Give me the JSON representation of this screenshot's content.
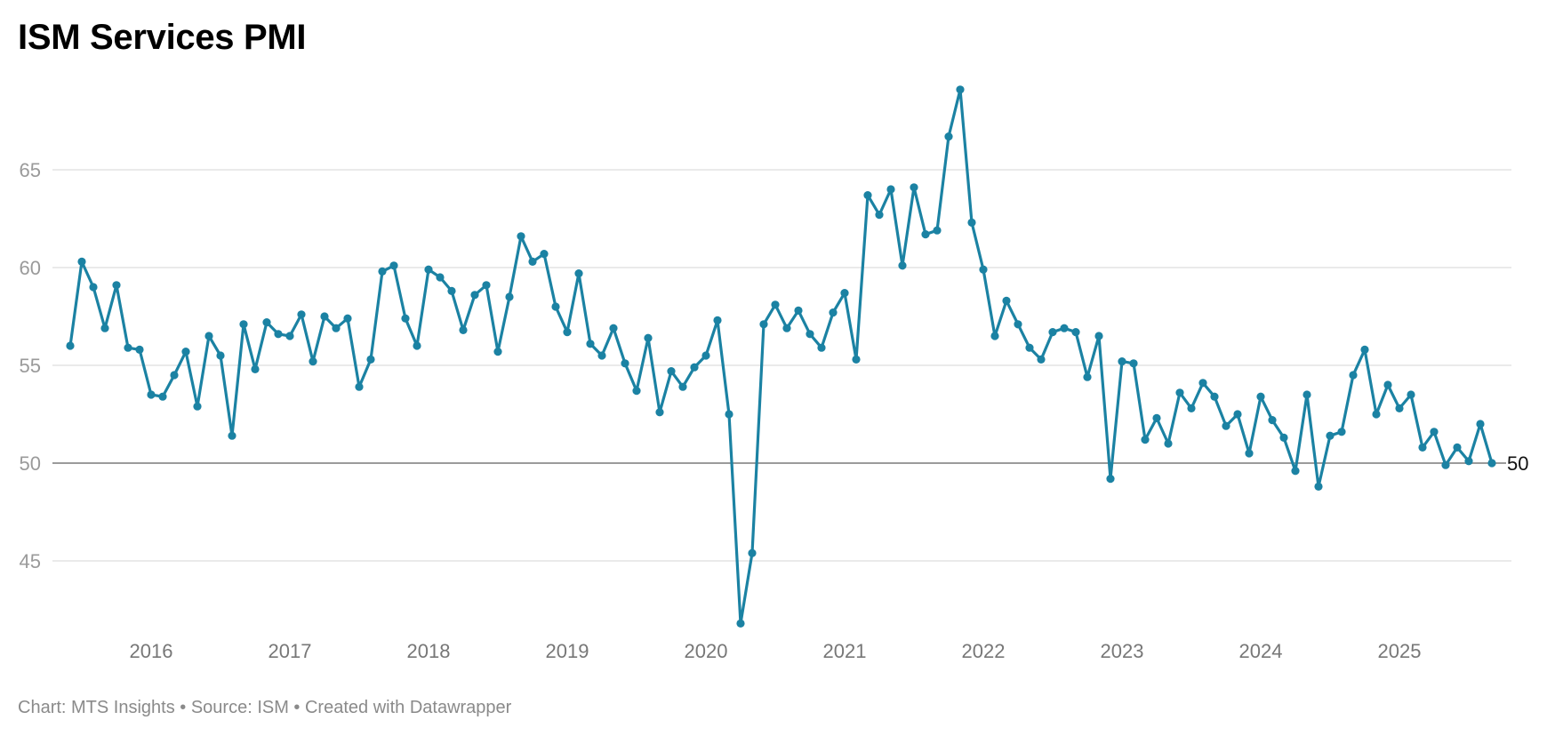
{
  "chart_data": {
    "type": "line",
    "title": "ISM Services PMI",
    "xlabel": "",
    "ylabel": "",
    "footer": "Chart: MTS Insights • Source: ISM • Created with Datawrapper",
    "start_month": "2015-06",
    "end_month": "2025-09",
    "x_tick_labels": [
      "2016",
      "2017",
      "2018",
      "2019",
      "2020",
      "2021",
      "2022",
      "2023",
      "2024",
      "2025"
    ],
    "y_ticks": [
      45,
      50,
      55,
      60,
      65
    ],
    "ylim": [
      41,
      70
    ],
    "reference_line": {
      "value": 50,
      "label": "50"
    },
    "grid": true,
    "legend": "none",
    "line_color": "#1b82a3",
    "series": [
      {
        "name": "ISM Services PMI",
        "values": [
          56.0,
          60.3,
          59.0,
          56.9,
          59.1,
          55.9,
          55.8,
          53.5,
          53.4,
          54.5,
          55.7,
          52.9,
          56.5,
          55.5,
          51.4,
          57.1,
          54.8,
          57.2,
          56.6,
          56.5,
          57.6,
          55.2,
          57.5,
          56.9,
          57.4,
          53.9,
          55.3,
          59.8,
          60.1,
          57.4,
          56.0,
          59.9,
          59.5,
          58.8,
          56.8,
          58.6,
          59.1,
          55.7,
          58.5,
          61.6,
          60.3,
          60.7,
          58.0,
          56.7,
          59.7,
          56.1,
          55.5,
          56.9,
          55.1,
          53.7,
          56.4,
          52.6,
          54.7,
          53.9,
          54.9,
          55.5,
          57.3,
          52.5,
          41.8,
          45.4,
          57.1,
          58.1,
          56.9,
          57.8,
          56.6,
          55.9,
          57.7,
          58.7,
          55.3,
          63.7,
          62.7,
          64.0,
          60.1,
          64.1,
          61.7,
          61.9,
          66.7,
          69.1,
          62.3,
          59.9,
          56.5,
          58.3,
          57.1,
          55.9,
          55.3,
          56.7,
          56.9,
          56.7,
          54.4,
          56.5,
          49.2,
          55.2,
          55.1,
          51.2,
          52.3,
          51.0,
          53.6,
          52.8,
          54.1,
          53.4,
          51.9,
          52.5,
          50.5,
          53.4,
          52.2,
          51.3,
          49.6,
          53.5,
          48.8,
          51.4,
          51.6,
          54.5,
          55.8,
          52.5,
          54.0,
          52.8,
          53.5,
          50.8,
          51.6,
          49.9,
          50.8,
          50.1,
          52.0,
          50.0
        ]
      }
    ]
  }
}
